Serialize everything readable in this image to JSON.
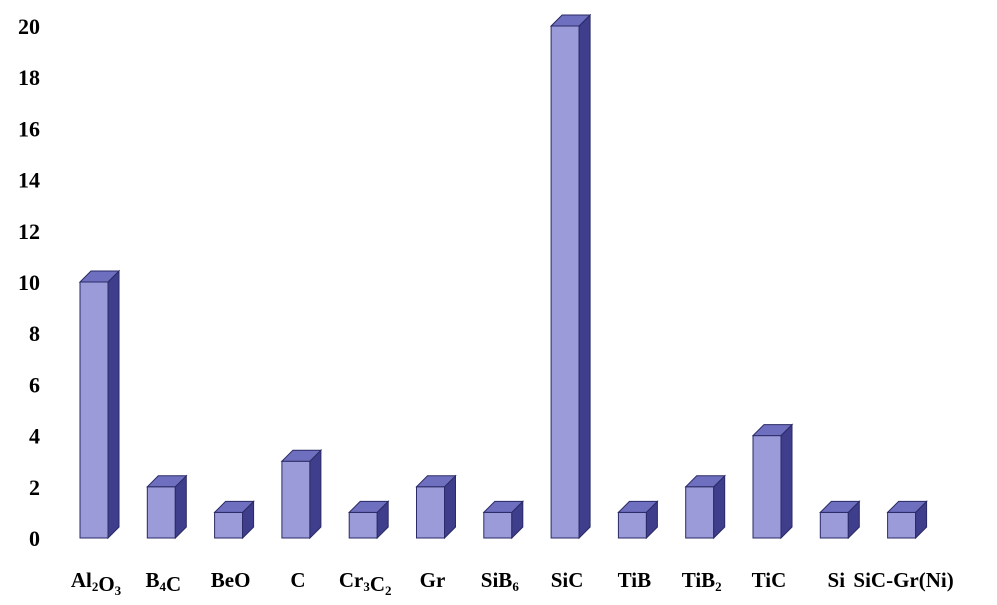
{
  "chart_data": {
    "type": "bar",
    "title": "",
    "xlabel": "",
    "ylabel": "",
    "ylim": [
      0,
      20
    ],
    "yticks": [
      "0",
      "2",
      "4",
      "6",
      "8",
      "10",
      "12",
      "14",
      "16",
      "18",
      "20"
    ],
    "grid": false,
    "categories": [
      {
        "base": "Al",
        "sub": "2",
        "base2": "O",
        "sub2": "3"
      },
      {
        "base": "B",
        "sub": "4",
        "base2": "C",
        "sub2": ""
      },
      {
        "base": "BeO",
        "sub": "",
        "base2": "",
        "sub2": ""
      },
      {
        "base": "C",
        "sub": "",
        "base2": "",
        "sub2": ""
      },
      {
        "base": "Cr",
        "sub": "3",
        "base2": "C",
        "sub2": "2"
      },
      {
        "base": "Gr",
        "sub": "",
        "base2": "",
        "sub2": ""
      },
      {
        "base": "SiB",
        "sub": "6",
        "base2": "",
        "sub2": ""
      },
      {
        "base": "SiC",
        "sub": "",
        "base2": "",
        "sub2": ""
      },
      {
        "base": "TiB",
        "sub": "",
        "base2": "",
        "sub2": ""
      },
      {
        "base": "TiB",
        "sub": "2",
        "base2": "",
        "sub2": ""
      },
      {
        "base": "TiC",
        "sub": "",
        "base2": "",
        "sub2": ""
      },
      {
        "base": "Si",
        "sub": "",
        "base2": "",
        "sub2": ""
      },
      {
        "base": "SiC-Gr(Ni)",
        "sub": "",
        "base2": "",
        "sub2": ""
      }
    ],
    "values": [
      10,
      2,
      1,
      3,
      1,
      2,
      1,
      20,
      1,
      2,
      4,
      1,
      1
    ],
    "colors": {
      "front": "#9b9bd9",
      "side": "#3e3e8c",
      "top": "#6f6fbf",
      "outline": "#2a2a66"
    }
  }
}
